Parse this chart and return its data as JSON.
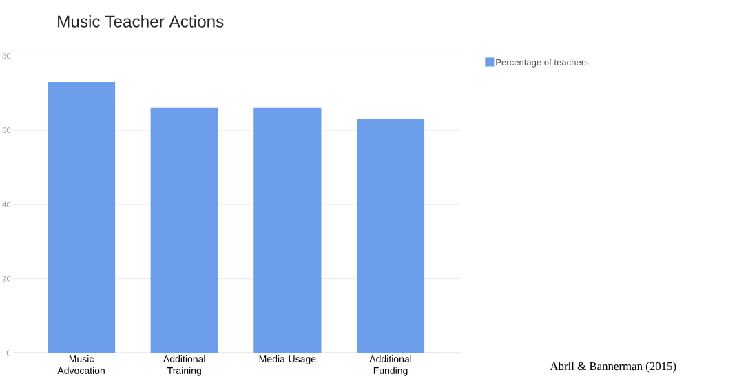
{
  "chart_data": {
    "type": "bar",
    "title": "Music Teacher Actions",
    "categories": [
      "Music Advocation",
      "Additional Training",
      "Media Usage",
      "Additional Funding"
    ],
    "series": [
      {
        "name": "Percentage of teachers",
        "color": "#6d9eeb",
        "values": [
          73,
          66,
          66,
          63
        ]
      }
    ],
    "ylim": [
      0,
      80
    ],
    "yticks": [
      0,
      20,
      40,
      60,
      80
    ],
    "grid": "y",
    "legend": "top right",
    "annotations": [
      "Abril & Bannerman (2015)"
    ]
  }
}
